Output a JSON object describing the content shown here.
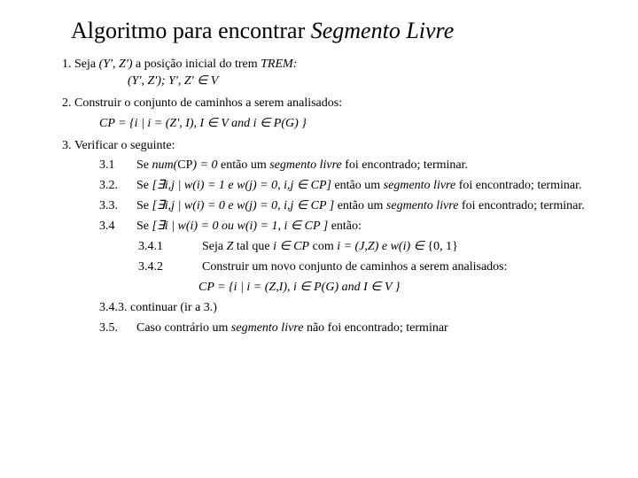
{
  "title_plain": "Algoritmo para encontrar ",
  "title_italic": "Segmento Livre",
  "item1_a": "Seja ",
  "item1_b": "(Y', Z')",
  "item1_c": " a posição inicial do trem ",
  "item1_d": "TREM:",
  "item1_formula": "(Y', Z'); Y', Z' ∈ V",
  "item2_a": "Construir o conjunto de caminhos a serem analisados:",
  "item2_formula": "CP = {i | i = (Z', I), I ∈ V and  i  ∈ P(G) }",
  "item3_a": "Verificar o seguinte:",
  "s31n": "3.1",
  "s31a": "Se ",
  "s31b": "num(",
  "s31c": "CP",
  "s31d": ") = 0",
  "s31e": "  então um ",
  "s31f": "segmento livre",
  "s31g": " foi encontrado; terminar.",
  "s32n": "3.2.",
  "s32a": "Se ",
  "s32b": "[∃i,j | w(i) = 1 e w(j) = 0, i,j ∈ CP]",
  "s32c": " então um ",
  "s32d": "segmento livre",
  "s32e": " foi encontrado; terminar.",
  "s33n": "3.3.",
  "s33a": "Se ",
  "s33b": "[∃i,j | w(i) = 0 e w(j) = 0, i,j ∈ CP ]",
  "s33c": " então um ",
  "s33d": "segmento livre",
  "s33e": " foi encontrado; terminar.",
  "s34n": "3.4",
  "s34a": "Se ",
  "s34b": "[∃i | w(i) = 0 ou w(i) = 1, i ∈ CP ]",
  "s34c": " então:",
  "s341n": "3.4.1",
  "s341a": "Seja ",
  "s341b": "Z",
  "s341c": " tal que ",
  "s341d": "i ∈ CP",
  "s341e": "  com ",
  "s341f": " i = (J,Z) e w(i) ∈ ",
  "s341g": "{0, 1}",
  "s342n": "3.4.2",
  "s342a": "Construir um novo conjunto de caminhos a serem analisados:",
  "s342f": "CP = {i | i = (Z,I),  i ∈ P(G) and I ∈ V }",
  "s343": "3.4.3. continuar (ir a 3.)",
  "s35n": "3.5.",
  "s35a": "Caso contrário um ",
  "s35b": "segmento livre",
  "s35c": " não foi encontrado; terminar"
}
